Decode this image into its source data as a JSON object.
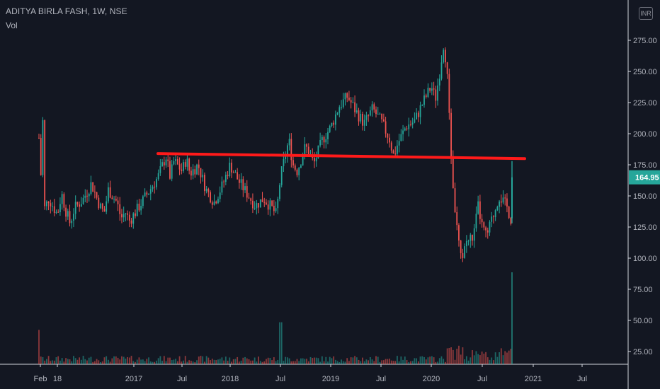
{
  "header": {
    "symbol": "ADITYA BIRLA FASH, 1W, NSE",
    "volume_label": "Vol"
  },
  "currency": "INR",
  "last_price": {
    "value": 164.95,
    "label": "164.95",
    "color": "#26a69a"
  },
  "colors": {
    "background": "#131722",
    "up": "#26a69a",
    "down": "#ef5350",
    "trendline": "#ff1a1a",
    "axis_line": "#d1d4dc",
    "text": "#b2b5be"
  },
  "chart_data": {
    "type": "candlestick",
    "title": "ADITYA BIRLA FASH, 1W, NSE",
    "price_axis": {
      "ticks": [
        25,
        50,
        75,
        100,
        125,
        150,
        175,
        200,
        225,
        250,
        275
      ],
      "tick_labels": [
        "25.00",
        "50.00",
        "75.00",
        "100.00",
        "125.00",
        "150.00",
        "175.00",
        "200.00",
        "225.00",
        "250.00",
        "275.00"
      ],
      "range": [
        12,
        290
      ]
    },
    "time_axis": {
      "ticks": [
        "2016-02",
        "2016-04",
        "2017-01",
        "2017-07",
        "2018-01",
        "2018-07",
        "2019-01",
        "2019-07",
        "2020-01",
        "2020-07",
        "2021-01",
        "2021-07"
      ],
      "tick_labels": [
        "Feb",
        "18",
        "2017",
        "Jul",
        "2018",
        "Jul",
        "2019",
        "Jul",
        "2020",
        "Jul",
        "2021",
        "Jul"
      ]
    },
    "price_path": [
      [
        "2016-01",
        220
      ],
      [
        "2016-01",
        222
      ],
      [
        "2016-02",
        150
      ],
      [
        "2016-02",
        140
      ],
      [
        "2016-03",
        148
      ],
      [
        "2016-04",
        135
      ],
      [
        "2016-04",
        152
      ],
      [
        "2016-05",
        138
      ],
      [
        "2016-05",
        128
      ],
      [
        "2016-06",
        140
      ],
      [
        "2016-07",
        147
      ],
      [
        "2016-08",
        160
      ],
      [
        "2016-09",
        142
      ],
      [
        "2016-09",
        136
      ],
      [
        "2016-10",
        155
      ],
      [
        "2016-11",
        145
      ],
      [
        "2016-11",
        132
      ],
      [
        "2016-12",
        137
      ],
      [
        "2016-12",
        130
      ],
      [
        "2017-01",
        135
      ],
      [
        "2017-02",
        145
      ],
      [
        "2017-03",
        155
      ],
      [
        "2017-04",
        165
      ],
      [
        "2017-05",
        182
      ],
      [
        "2017-05",
        165
      ],
      [
        "2017-06",
        178
      ],
      [
        "2017-07",
        170
      ],
      [
        "2017-07",
        180
      ],
      [
        "2017-08",
        168
      ],
      [
        "2017-09",
        175
      ],
      [
        "2017-10",
        155
      ],
      [
        "2017-11",
        145
      ],
      [
        "2017-12",
        158
      ],
      [
        "2018-01",
        175
      ],
      [
        "2018-02",
        162
      ],
      [
        "2018-03",
        152
      ],
      [
        "2018-04",
        142
      ],
      [
        "2018-05",
        148
      ],
      [
        "2018-06",
        140
      ],
      [
        "2018-06",
        135
      ],
      [
        "2018-07",
        165
      ],
      [
        "2018-08",
        195
      ],
      [
        "2018-08",
        175
      ],
      [
        "2018-09",
        170
      ],
      [
        "2018-10",
        190
      ],
      [
        "2018-11",
        176
      ],
      [
        "2018-12",
        195
      ],
      [
        "2019-01",
        205
      ],
      [
        "2019-02",
        222
      ],
      [
        "2019-03",
        230
      ],
      [
        "2019-04",
        218
      ],
      [
        "2019-05",
        208
      ],
      [
        "2019-06",
        220
      ],
      [
        "2019-07",
        210
      ],
      [
        "2019-08",
        196
      ],
      [
        "2019-08",
        182
      ],
      [
        "2019-09",
        192
      ],
      [
        "2019-10",
        206
      ],
      [
        "2019-11",
        210
      ],
      [
        "2019-12",
        225
      ],
      [
        "2020-01",
        238
      ],
      [
        "2020-01",
        228
      ],
      [
        "2020-02",
        250
      ],
      [
        "2020-02",
        275
      ],
      [
        "2020-03",
        235
      ],
      [
        "2020-03",
        160
      ],
      [
        "2020-04",
        125
      ],
      [
        "2020-04",
        98
      ],
      [
        "2020-05",
        112
      ],
      [
        "2020-06",
        118
      ],
      [
        "2020-06",
        142
      ],
      [
        "2020-07",
        125
      ],
      [
        "2020-07",
        117
      ],
      [
        "2020-08",
        128
      ],
      [
        "2020-09",
        150
      ],
      [
        "2020-10",
        140
      ],
      [
        "2020-10",
        128
      ],
      [
        "2020-11",
        134
      ],
      [
        "2020-11",
        164.95
      ]
    ],
    "volume_spikes": [
      [
        "2016-01",
        36
      ],
      [
        "2018-07",
        44
      ],
      [
        "2020-11",
        88
      ]
    ],
    "trendline": {
      "from": [
        "2017-04",
        184
      ],
      "to": [
        "2020-12",
        180
      ]
    }
  }
}
